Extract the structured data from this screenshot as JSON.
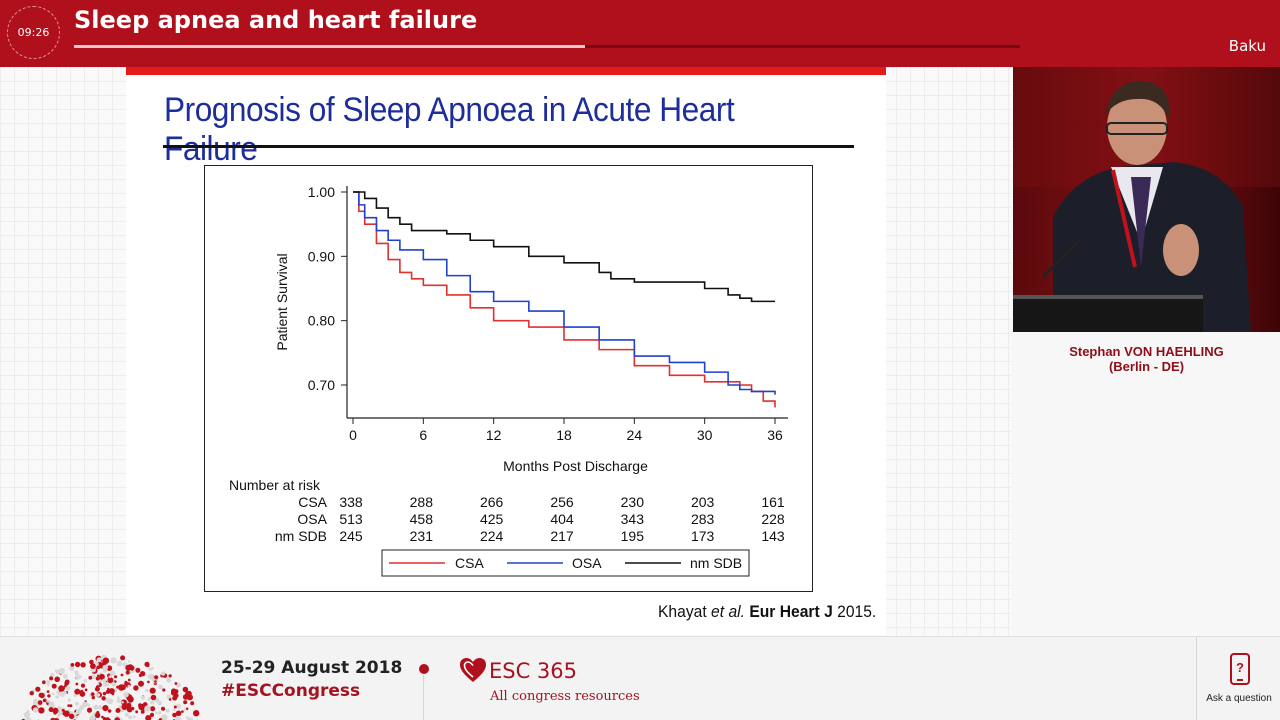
{
  "header": {
    "timer": "09:26",
    "session_title": "Sleep apnea and heart failure",
    "progress": 0.54,
    "city": "Baku",
    "accent_color": "#b0101c"
  },
  "slide": {
    "title": "Prognosis of Sleep Apnoea in Acute Heart Failure",
    "citation": {
      "authors": "Khayat",
      "et_al": "et al.",
      "journal": "Eur Heart J",
      "year": "2015."
    }
  },
  "chart_data": {
    "type": "line",
    "title": "",
    "xlabel": "Months Post Discharge",
    "ylabel": "Patient Survival",
    "xlim": [
      0,
      36
    ],
    "ylim": [
      0.66,
      1.0
    ],
    "xticks": [
      "0",
      "6",
      "12",
      "18",
      "24",
      "30",
      "36"
    ],
    "yticks": [
      "1.00",
      "0.90",
      "0.80",
      "0.70"
    ],
    "series": [
      {
        "name": "CSA",
        "color": "#e03030",
        "points": [
          [
            0,
            1.0
          ],
          [
            0.5,
            0.97
          ],
          [
            1,
            0.95
          ],
          [
            2,
            0.92
          ],
          [
            3,
            0.895
          ],
          [
            4,
            0.875
          ],
          [
            5,
            0.865
          ],
          [
            6,
            0.855
          ],
          [
            8,
            0.84
          ],
          [
            10,
            0.82
          ],
          [
            12,
            0.8
          ],
          [
            15,
            0.79
          ],
          [
            18,
            0.77
          ],
          [
            21,
            0.755
          ],
          [
            24,
            0.73
          ],
          [
            27,
            0.715
          ],
          [
            30,
            0.705
          ],
          [
            33,
            0.7
          ],
          [
            34,
            0.69
          ],
          [
            35,
            0.675
          ],
          [
            36,
            0.665
          ]
        ]
      },
      {
        "name": "OSA",
        "color": "#2040d0",
        "points": [
          [
            0,
            1.0
          ],
          [
            0.5,
            0.98
          ],
          [
            1,
            0.96
          ],
          [
            2,
            0.94
          ],
          [
            3,
            0.925
          ],
          [
            4,
            0.91
          ],
          [
            6,
            0.895
          ],
          [
            8,
            0.87
          ],
          [
            10,
            0.845
          ],
          [
            12,
            0.83
          ],
          [
            15,
            0.815
          ],
          [
            18,
            0.79
          ],
          [
            21,
            0.77
          ],
          [
            24,
            0.745
          ],
          [
            27,
            0.735
          ],
          [
            30,
            0.72
          ],
          [
            32,
            0.7
          ],
          [
            33,
            0.693
          ],
          [
            34,
            0.69
          ],
          [
            36,
            0.685
          ]
        ]
      },
      {
        "name": "nm SDB",
        "color": "#111111",
        "points": [
          [
            0,
            1.0
          ],
          [
            1,
            0.99
          ],
          [
            2,
            0.975
          ],
          [
            3,
            0.96
          ],
          [
            4,
            0.95
          ],
          [
            5,
            0.94
          ],
          [
            6,
            0.94
          ],
          [
            8,
            0.935
          ],
          [
            10,
            0.925
          ],
          [
            12,
            0.915
          ],
          [
            15,
            0.9
          ],
          [
            18,
            0.89
          ],
          [
            21,
            0.875
          ],
          [
            22,
            0.865
          ],
          [
            24,
            0.86
          ],
          [
            27,
            0.86
          ],
          [
            30,
            0.85
          ],
          [
            32,
            0.84
          ],
          [
            33,
            0.835
          ],
          [
            34,
            0.83
          ],
          [
            36,
            0.83
          ]
        ]
      }
    ],
    "risk_table": {
      "header": "Number at risk",
      "rows": [
        {
          "label": "CSA",
          "values": [
            "338",
            "288",
            "266",
            "256",
            "230",
            "203",
            "161"
          ]
        },
        {
          "label": "OSA",
          "values": [
            "513",
            "458",
            "425",
            "404",
            "343",
            "283",
            "228"
          ]
        },
        {
          "label": "nm SDB",
          "values": [
            "245",
            "231",
            "224",
            "217",
            "195",
            "173",
            "143"
          ]
        }
      ]
    },
    "legend": {
      "placement": "bottom",
      "entries": [
        "CSA",
        "OSA",
        "nm SDB"
      ]
    }
  },
  "speaker": {
    "name": "Stephan VON HAEHLING",
    "affiliation": "(Berlin - DE)"
  },
  "footer": {
    "dates": "25-29 August 2018",
    "hashtag": "#ESCCongress",
    "esc_label": "ESC 365",
    "esc_sub": "All congress resources",
    "ask_label": "Ask a question"
  }
}
